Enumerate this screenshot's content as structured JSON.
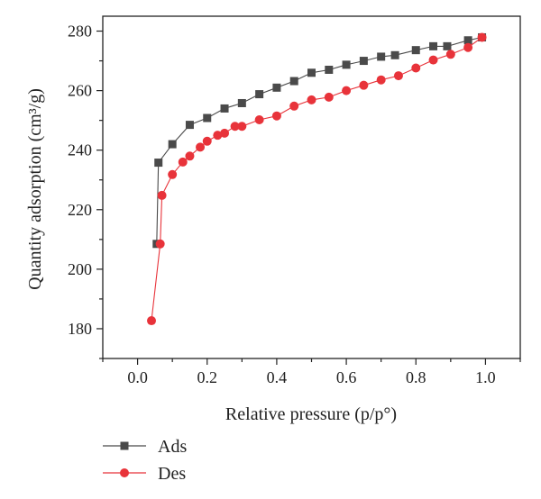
{
  "chart_data": {
    "type": "line",
    "xlabel": "Relative pressure (p/p°)",
    "ylabel": "Quantity adsorption (cm³/g)",
    "xlim": [
      -0.1,
      1.1
    ],
    "ylim": [
      170,
      285
    ],
    "x_ticks": [
      "0.0",
      "0.2",
      "0.4",
      "0.6",
      "0.8",
      "1.0"
    ],
    "y_ticks": [
      "180",
      "200",
      "220",
      "240",
      "260",
      "280"
    ],
    "legend_position": "bottom-left",
    "grid": false,
    "series": [
      {
        "name": "Ads",
        "color": "#4a4a4a",
        "marker": "square",
        "points": [
          [
            0.055,
            208.5
          ],
          [
            0.06,
            235.8
          ],
          [
            0.1,
            242.0
          ],
          [
            0.15,
            248.5
          ],
          [
            0.2,
            250.8
          ],
          [
            0.25,
            254.0
          ],
          [
            0.3,
            255.8
          ],
          [
            0.35,
            258.8
          ],
          [
            0.4,
            261.0
          ],
          [
            0.45,
            263.2
          ],
          [
            0.5,
            266.0
          ],
          [
            0.55,
            267.0
          ],
          [
            0.6,
            268.7
          ],
          [
            0.65,
            270.0
          ],
          [
            0.7,
            271.4
          ],
          [
            0.74,
            271.9
          ],
          [
            0.8,
            273.6
          ],
          [
            0.85,
            274.9
          ],
          [
            0.89,
            274.9
          ],
          [
            0.95,
            276.9
          ],
          [
            0.99,
            277.9
          ]
        ]
      },
      {
        "name": "Des",
        "color": "#e8333a",
        "marker": "circle",
        "points": [
          [
            0.99,
            277.9
          ],
          [
            0.95,
            274.5
          ],
          [
            0.9,
            272.2
          ],
          [
            0.85,
            270.3
          ],
          [
            0.8,
            267.6
          ],
          [
            0.75,
            265.0
          ],
          [
            0.7,
            263.6
          ],
          [
            0.65,
            261.8
          ],
          [
            0.6,
            260.0
          ],
          [
            0.55,
            257.8
          ],
          [
            0.5,
            256.9
          ],
          [
            0.45,
            254.8
          ],
          [
            0.4,
            251.5
          ],
          [
            0.35,
            250.2
          ],
          [
            0.3,
            248.0
          ],
          [
            0.28,
            248.0
          ],
          [
            0.25,
            245.7
          ],
          [
            0.23,
            245.0
          ],
          [
            0.2,
            243.0
          ],
          [
            0.18,
            241.0
          ],
          [
            0.15,
            238.0
          ],
          [
            0.13,
            236.0
          ],
          [
            0.1,
            231.8
          ],
          [
            0.07,
            224.8
          ],
          [
            0.065,
            208.5
          ],
          [
            0.04,
            182.7
          ]
        ]
      }
    ]
  }
}
